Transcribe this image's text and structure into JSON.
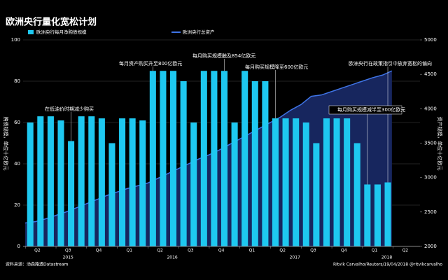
{
  "chart_data": {
    "type": "bar-area",
    "title": "欧洲央行量化宽松计划",
    "y_label": "购债规模，单位十亿欧元",
    "y2_label": "资产规模，单位十亿欧元",
    "source": "资料来源：汤森路透Datastream",
    "credit": "Ritvik Carvalho/Reuters/19/04/2018 @ritvikcarvalho",
    "categories": [
      null,
      null,
      null,
      null,
      null,
      null,
      null,
      null,
      null,
      null,
      null,
      null,
      null,
      null,
      null,
      null,
      null,
      null,
      null,
      null,
      null,
      null,
      null,
      null,
      null,
      null,
      null,
      null,
      null,
      null,
      null,
      null,
      null,
      null,
      null,
      null
    ],
    "xlim": [
      -0.7,
      38.15
    ],
    "xticks": [
      {
        "value": 0.7,
        "label": "Q2"
      },
      {
        "value": 3.7,
        "label": "Q3"
      },
      {
        "value": 6.7,
        "label": "Q4"
      },
      {
        "value": 9.7,
        "label": "Q1"
      },
      {
        "value": 12.7,
        "label": "Q2"
      },
      {
        "value": 15.7,
        "label": "Q3"
      },
      {
        "value": 18.7,
        "label": "Q4"
      },
      {
        "value": 21.7,
        "label": "Q1"
      },
      {
        "value": 24.7,
        "label": "Q2"
      },
      {
        "value": 27.7,
        "label": "Q3"
      },
      {
        "value": 30.7,
        "label": "Q4"
      },
      {
        "value": 33.7,
        "label": "Q1"
      },
      {
        "value": 36.7,
        "label": "Q2"
      }
    ],
    "year_ticks": [
      {
        "value": 3.7,
        "label": "2015"
      },
      {
        "value": 13.9,
        "label": "2016"
      },
      {
        "value": 25.9,
        "label": "2017"
      },
      {
        "value": 34.9,
        "label": "2018"
      }
    ],
    "ylim": [
      0,
      100
    ],
    "yticks": [
      0,
      20,
      40,
      60,
      80,
      100
    ],
    "y2lim": [
      2000,
      5000
    ],
    "y2ticks": [
      2000,
      2500,
      3000,
      3500,
      4000,
      4500,
      5000
    ],
    "grid": true,
    "series": [
      {
        "name": "欧洲央行每月净购债规模",
        "color": "#1ec8f0",
        "values": [
          60,
          63,
          63,
          61,
          51,
          63,
          63,
          62,
          50,
          62,
          62,
          61,
          85,
          85,
          85,
          80,
          60,
          85,
          85,
          85,
          60,
          85,
          80,
          80,
          62,
          62,
          62,
          60,
          50,
          62,
          62,
          62,
          50,
          30,
          30,
          31
        ]
      },
      {
        "name": "欧洲央行总资产",
        "color": "#3f74e6",
        "fill": "#17265e",
        "axis": "y2",
        "x": [
          -0.5,
          0.5,
          1.5,
          2.5,
          3.5,
          4.5,
          5.5,
          6.5,
          7.5,
          8.5,
          9.5,
          10.5,
          11.5,
          12.5,
          13.5,
          14.5,
          15.5,
          16.5,
          17.5,
          18.5,
          19.5,
          20.5,
          21.5,
          22.5,
          23.5,
          24.5,
          25.5,
          26.5,
          27.5,
          28.5,
          29.5,
          30.5,
          31.5,
          32.5,
          33.5,
          34.5,
          35.4
        ],
        "values": [
          2340,
          2360,
          2400,
          2450,
          2500,
          2560,
          2620,
          2680,
          2740,
          2790,
          2840,
          2880,
          2920,
          2990,
          3060,
          3130,
          3200,
          3270,
          3330,
          3400,
          3480,
          3560,
          3640,
          3720,
          3800,
          3880,
          3980,
          4060,
          4180,
          4200,
          4250,
          4300,
          4350,
          4400,
          4450,
          4490,
          4550
        ]
      }
    ],
    "annotations": [
      {
        "text": "在低油价时期减少购买",
        "index": 4
      },
      {
        "text": "每月资产购买升至800亿欧元",
        "index": 12
      },
      {
        "text": "每月购买规模触及854亿欧元",
        "index": 19
      },
      {
        "text": "每月购买规模降至600亿欧元",
        "index": 24
      },
      {
        "text": "欧洲央行在政策指引中放弃宽松的偏向",
        "index": 35
      },
      {
        "text": "每月购买规模减半至300亿欧元",
        "index": 33
      }
    ]
  }
}
